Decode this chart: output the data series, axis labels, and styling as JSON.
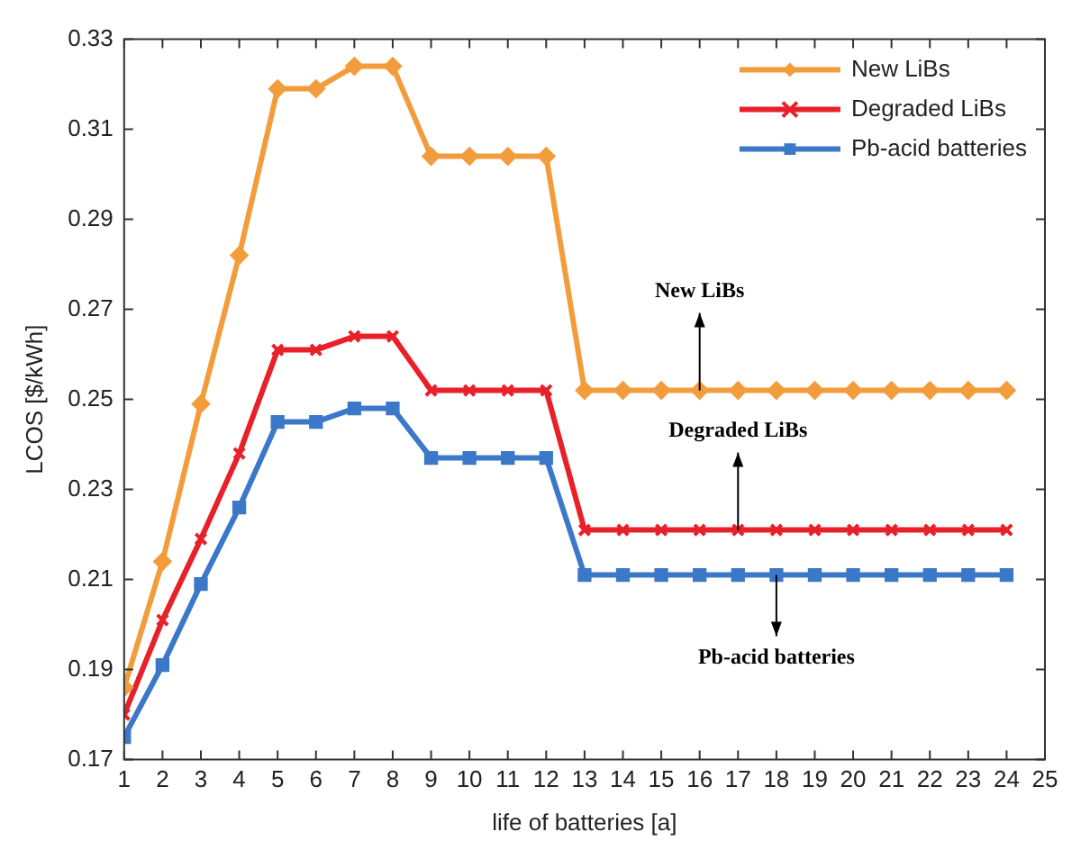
{
  "chart_data": {
    "type": "line",
    "xlabel": "life of batteries [a]",
    "ylabel": "LCOS [$/kWh]",
    "x": [
      1,
      2,
      3,
      4,
      5,
      6,
      7,
      8,
      9,
      10,
      11,
      12,
      13,
      14,
      15,
      16,
      17,
      18,
      19,
      20,
      21,
      22,
      23,
      24
    ],
    "series": [
      {
        "name": "New LiBs",
        "color": "#f39c3c",
        "marker": "diamond",
        "values": [
          0.186,
          0.214,
          0.249,
          0.282,
          0.319,
          0.319,
          0.324,
          0.324,
          0.304,
          0.304,
          0.304,
          0.304,
          0.252,
          0.252,
          0.252,
          0.252,
          0.252,
          0.252,
          0.252,
          0.252,
          0.252,
          0.252,
          0.252,
          0.252
        ]
      },
      {
        "name": "Degraded LiBs",
        "color": "#e8202a",
        "marker": "cross",
        "values": [
          0.18,
          0.201,
          0.219,
          0.238,
          0.261,
          0.261,
          0.264,
          0.264,
          0.252,
          0.252,
          0.252,
          0.252,
          0.221,
          0.221,
          0.221,
          0.221,
          0.221,
          0.221,
          0.221,
          0.221,
          0.221,
          0.221,
          0.221,
          0.221
        ]
      },
      {
        "name": "Pb-acid batteries",
        "color": "#3c78c8",
        "marker": "square",
        "values": [
          0.175,
          0.191,
          0.209,
          0.226,
          0.245,
          0.245,
          0.248,
          0.248,
          0.237,
          0.237,
          0.237,
          0.237,
          0.211,
          0.211,
          0.211,
          0.211,
          0.211,
          0.211,
          0.211,
          0.211,
          0.211,
          0.211,
          0.211,
          0.211
        ]
      }
    ],
    "xlim": [
      1,
      25
    ],
    "xticks": [
      1,
      2,
      3,
      4,
      5,
      6,
      7,
      8,
      9,
      10,
      11,
      12,
      13,
      14,
      15,
      16,
      17,
      18,
      19,
      20,
      21,
      22,
      23,
      24,
      25
    ],
    "ylim": [
      0.17,
      0.33
    ],
    "yticks": [
      0.17,
      0.19,
      0.21,
      0.23,
      0.25,
      0.27,
      0.29,
      0.31,
      0.33
    ],
    "grid": false,
    "legend": "top right",
    "line_style": "solid",
    "annotations": [
      {
        "text": "New LiBs",
        "x": 16,
        "y": 0.252
      },
      {
        "text": "Degraded LiBs",
        "x": 17,
        "y": 0.221
      },
      {
        "text": "Pb-acid batteries",
        "x": 18,
        "y": 0.211
      }
    ]
  }
}
